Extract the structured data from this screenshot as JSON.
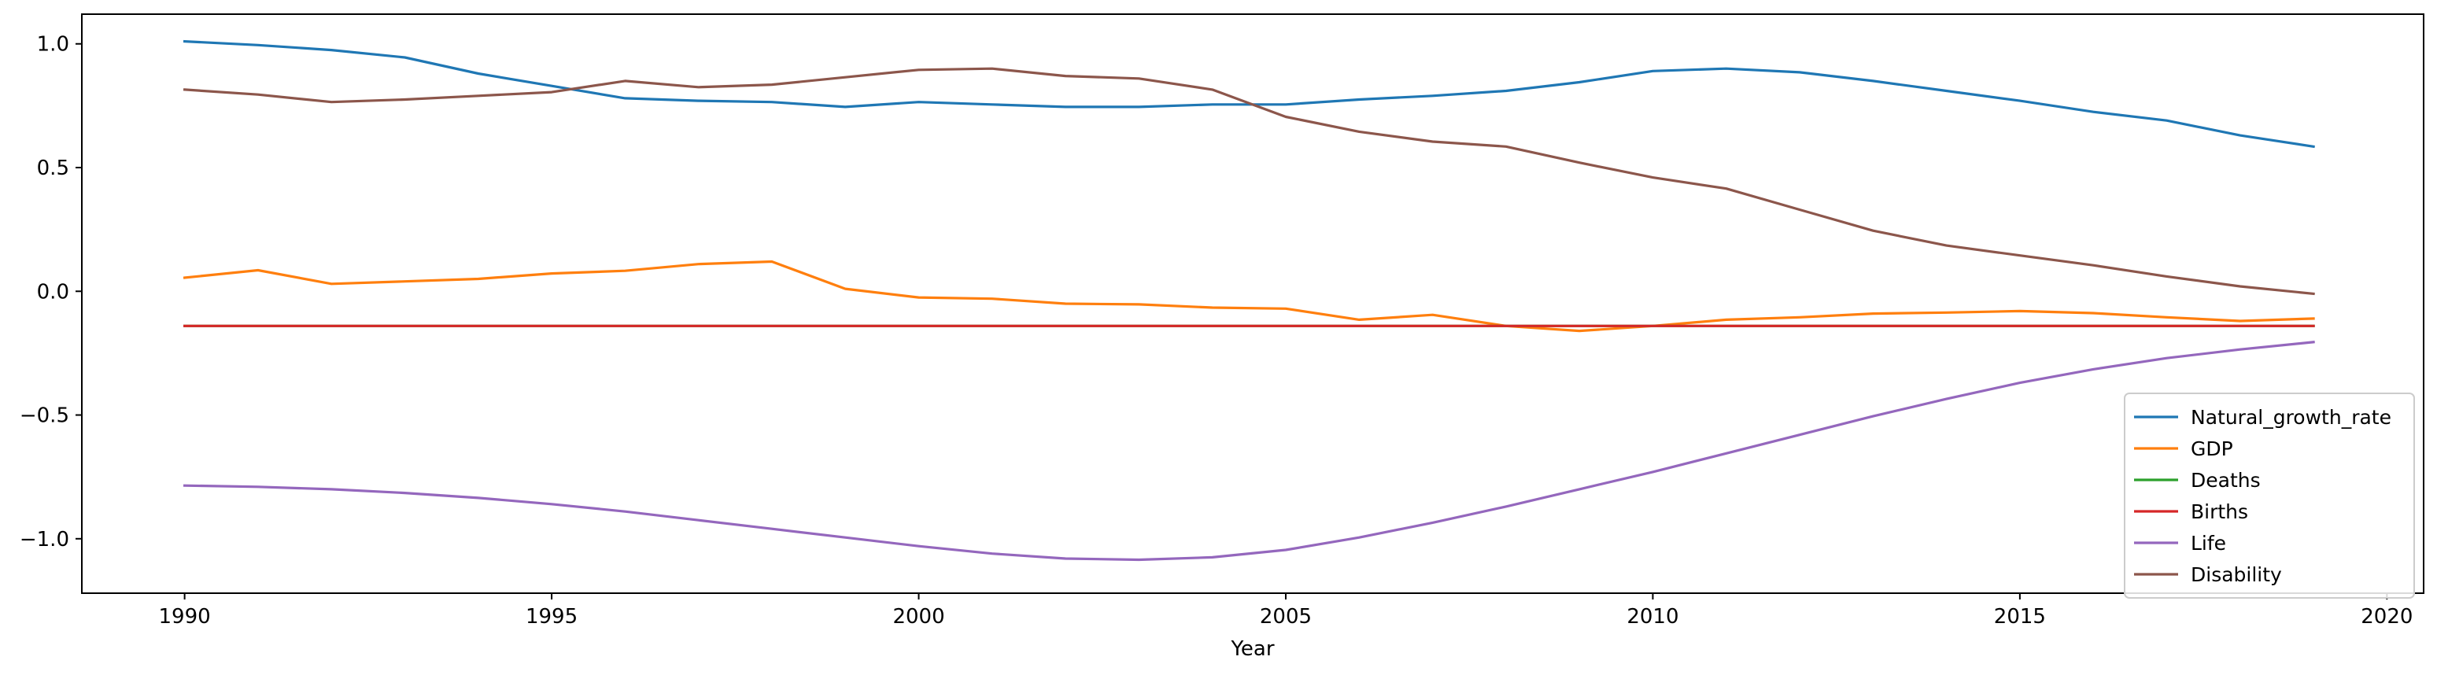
{
  "chart_data": {
    "type": "line",
    "title": "",
    "xlabel": "Year",
    "ylabel": "",
    "xlim": [
      1988.6,
      2020.5
    ],
    "ylim": [
      -1.22,
      1.12
    ],
    "xticks": [
      1990,
      1995,
      2000,
      2005,
      2010,
      2015,
      2020
    ],
    "yticks": [
      1.0,
      0.5,
      0.0,
      -0.5,
      -1.0
    ],
    "ytick_labels": [
      "1.0",
      "0.5",
      "0.0",
      "−0.5",
      "−1.0"
    ],
    "grid": false,
    "legend_position": "lower-right",
    "x": [
      1990,
      1991,
      1992,
      1993,
      1994,
      1995,
      1996,
      1997,
      1998,
      1999,
      2000,
      2001,
      2002,
      2003,
      2004,
      2005,
      2006,
      2007,
      2008,
      2009,
      2010,
      2011,
      2012,
      2013,
      2014,
      2015,
      2016,
      2017,
      2018,
      2019
    ],
    "series": [
      {
        "name": "Natural_growth_rate",
        "color": "#1f77b4",
        "values": [
          1.01,
          0.995,
          0.975,
          0.945,
          0.88,
          0.83,
          0.78,
          0.77,
          0.765,
          0.745,
          0.765,
          0.755,
          0.745,
          0.745,
          0.755,
          0.755,
          0.775,
          0.79,
          0.81,
          0.845,
          0.89,
          0.9,
          0.885,
          0.85,
          0.81,
          0.77,
          0.725,
          0.69,
          0.63,
          0.585
        ]
      },
      {
        "name": "GDP",
        "color": "#ff7f0e",
        "values": [
          0.055,
          0.085,
          0.03,
          0.04,
          0.05,
          0.072,
          0.083,
          0.11,
          0.12,
          0.01,
          -0.025,
          -0.03,
          -0.05,
          -0.053,
          -0.066,
          -0.07,
          -0.115,
          -0.095,
          -0.14,
          -0.16,
          -0.14,
          -0.115,
          -0.105,
          -0.09,
          -0.086,
          -0.08,
          -0.088,
          -0.105,
          -0.12,
          -0.11
        ]
      },
      {
        "name": "Deaths",
        "color": "#2ca02c",
        "values": [
          -0.14,
          -0.14,
          -0.14,
          -0.14,
          -0.14,
          -0.14,
          -0.14,
          -0.14,
          -0.14,
          -0.14,
          -0.14,
          -0.14,
          -0.14,
          -0.14,
          -0.14,
          -0.14,
          -0.14,
          -0.14,
          -0.14,
          -0.14,
          -0.14,
          -0.14,
          -0.14,
          -0.14,
          -0.14,
          -0.14,
          -0.14,
          -0.14,
          -0.14,
          -0.14
        ]
      },
      {
        "name": "Births",
        "color": "#d62728",
        "values": [
          -0.14,
          -0.14,
          -0.14,
          -0.14,
          -0.14,
          -0.14,
          -0.14,
          -0.14,
          -0.14,
          -0.14,
          -0.14,
          -0.14,
          -0.14,
          -0.14,
          -0.14,
          -0.14,
          -0.14,
          -0.14,
          -0.14,
          -0.14,
          -0.14,
          -0.14,
          -0.14,
          -0.14,
          -0.14,
          -0.14,
          -0.14,
          -0.14,
          -0.14,
          -0.14
        ]
      },
      {
        "name": "Life",
        "color": "#9467bd",
        "values": [
          -0.785,
          -0.79,
          -0.8,
          -0.815,
          -0.835,
          -0.86,
          -0.89,
          -0.925,
          -0.96,
          -0.995,
          -1.03,
          -1.06,
          -1.08,
          -1.085,
          -1.075,
          -1.045,
          -0.995,
          -0.935,
          -0.87,
          -0.8,
          -0.73,
          -0.655,
          -0.58,
          -0.505,
          -0.435,
          -0.37,
          -0.315,
          -0.27,
          -0.235,
          -0.205
        ]
      },
      {
        "name": "Disability",
        "color": "#8c564b",
        "values": [
          0.815,
          0.795,
          0.765,
          0.775,
          0.79,
          0.805,
          0.85,
          0.825,
          0.835,
          0.865,
          0.895,
          0.9,
          0.87,
          0.86,
          0.815,
          0.705,
          0.645,
          0.605,
          0.585,
          0.52,
          0.46,
          0.415,
          0.33,
          0.245,
          0.185,
          0.145,
          0.105,
          0.06,
          0.02,
          -0.01
        ]
      }
    ]
  }
}
